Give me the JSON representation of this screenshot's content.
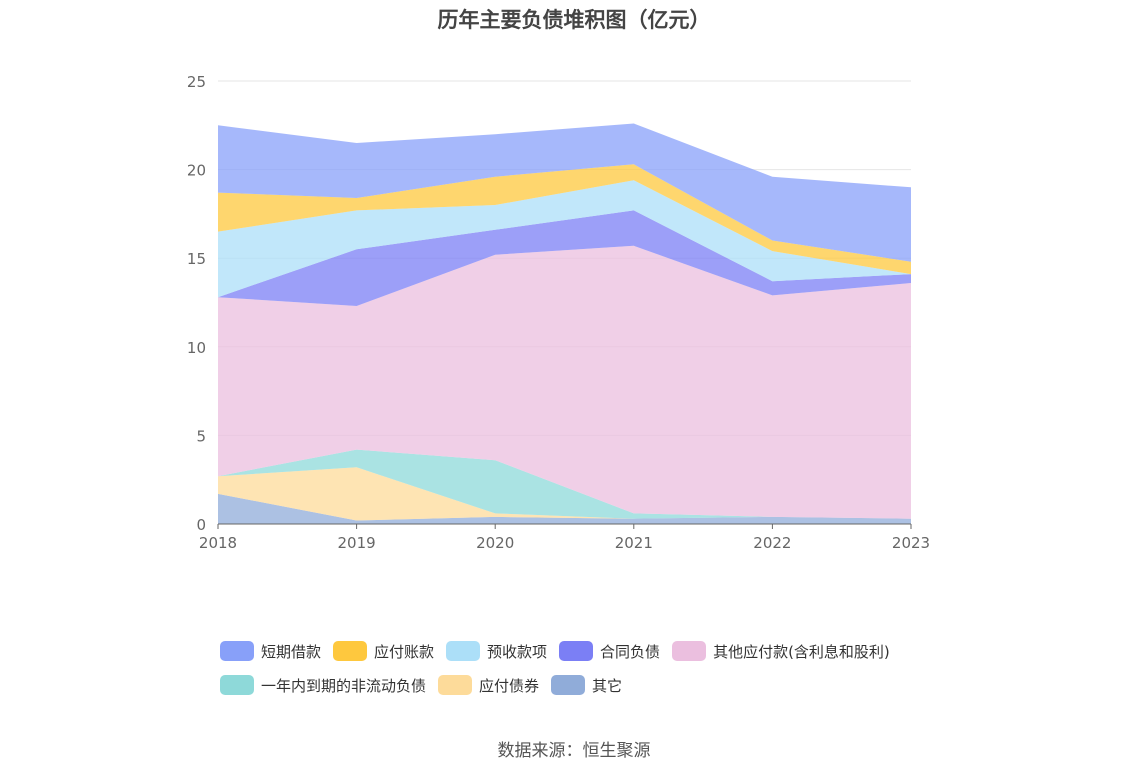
{
  "chart_data": {
    "type": "area",
    "stacked": true,
    "title": "历年主要负债堆积图（亿元）",
    "x": [
      "2018",
      "2019",
      "2020",
      "2021",
      "2022",
      "2023"
    ],
    "ylim": [
      0,
      25
    ],
    "yticks": [
      0,
      5,
      10,
      15,
      20,
      25
    ],
    "grid": true,
    "legend_position": "bottom",
    "series": [
      {
        "name": "其它",
        "color": "#90acd9",
        "values": [
          1.7,
          0.2,
          0.4,
          0.3,
          0.4,
          0.3
        ]
      },
      {
        "name": "应付债券",
        "color": "#fddb9a",
        "values": [
          1.0,
          3.0,
          0.2,
          0.0,
          0.0,
          0.0
        ]
      },
      {
        "name": "一年内到期的非流动负债",
        "color": "#8ed9d9",
        "values": [
          0.0,
          1.0,
          3.0,
          0.3,
          0.0,
          0.0
        ]
      },
      {
        "name": "其他应付款(含利息和股利)",
        "color": "#ebbfdf",
        "values": [
          10.1,
          8.1,
          11.6,
          15.1,
          12.5,
          13.3
        ]
      },
      {
        "name": "合同负债",
        "color": "#7b7ff5",
        "values": [
          0.0,
          3.2,
          1.4,
          2.0,
          0.8,
          0.5
        ]
      },
      {
        "name": "预收款项",
        "color": "#acdff8",
        "values": [
          3.7,
          2.2,
          1.4,
          1.7,
          1.7,
          0.0
        ]
      },
      {
        "name": "应付账款",
        "color": "#fec83e",
        "values": [
          2.2,
          0.7,
          1.6,
          0.9,
          0.6,
          0.7
        ]
      },
      {
        "name": "短期借款",
        "color": "#88a0f9",
        "values": [
          3.8,
          3.1,
          2.4,
          2.3,
          3.6,
          4.2
        ]
      }
    ],
    "legend_order": [
      "短期借款",
      "应付账款",
      "预收款项",
      "合同负债",
      "其他应付款(含利息和股利)",
      "一年内到期的非流动负债",
      "应付债券",
      "其它"
    ]
  },
  "source_note": "数据来源：恒生聚源"
}
